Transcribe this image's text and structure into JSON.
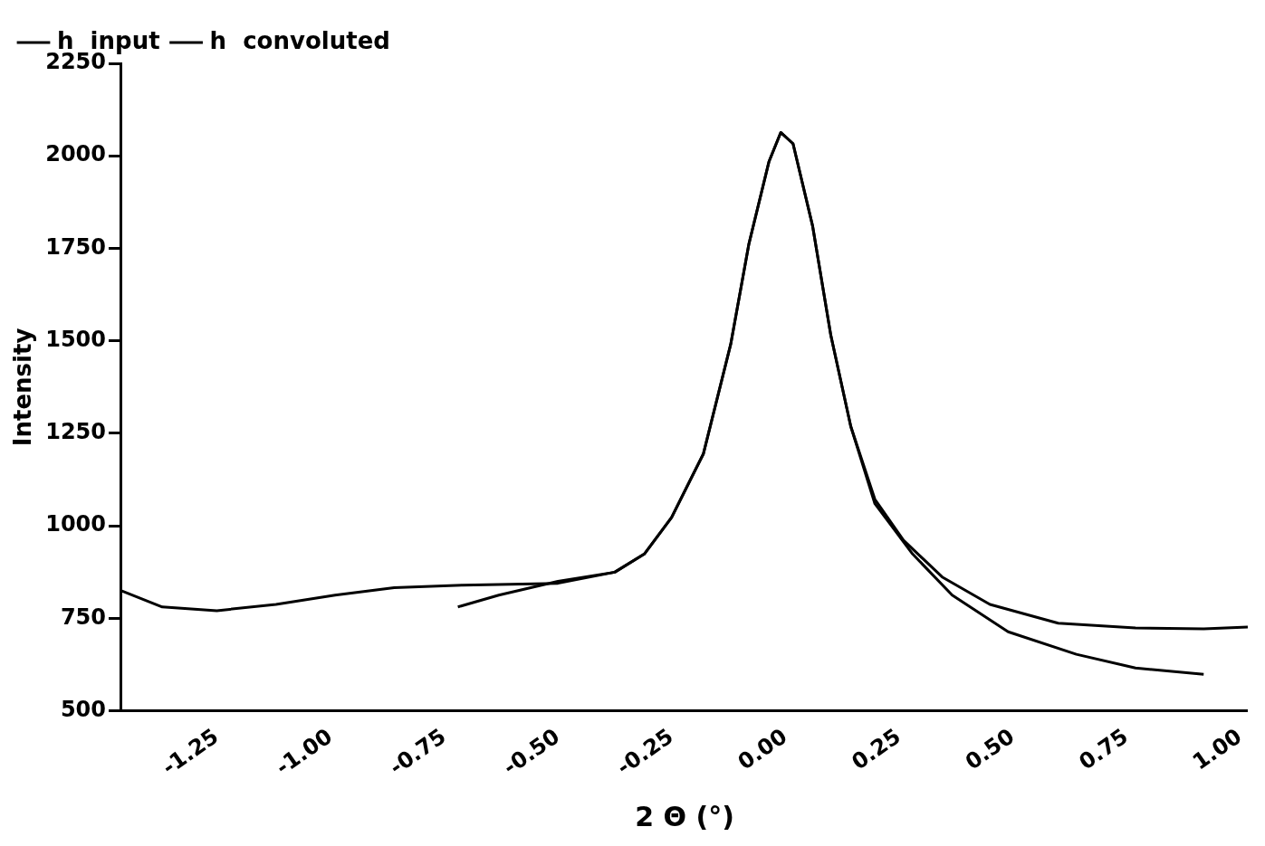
{
  "chart_data": {
    "type": "line",
    "xlabel": "2 Θ (°)",
    "ylabel": "Intensity",
    "xlim": [
      -1.46,
      1.017
    ],
    "ylim": [
      500,
      2250
    ],
    "xticks": [
      {
        "value": -1.25,
        "label": "-1.25"
      },
      {
        "value": -1,
        "label": "-1.00"
      },
      {
        "value": -0.75,
        "label": "-0.75"
      },
      {
        "value": -0.5,
        "label": "-0.50"
      },
      {
        "value": -0.25,
        "label": "-0.25"
      },
      {
        "value": 0,
        "label": "0.00"
      },
      {
        "value": 0.25,
        "label": "0.25"
      },
      {
        "value": 0.5,
        "label": "0.50"
      },
      {
        "value": 0.75,
        "label": "0.75"
      },
      {
        "value": 1,
        "label": "1.00"
      }
    ],
    "yticks": [
      500,
      750,
      1000,
      1250,
      1500,
      1750,
      2000,
      2250
    ],
    "grid": false,
    "legend": "top left",
    "marker": "none",
    "line_style": "solid",
    "series": [
      {
        "name": "h  input",
        "color": "#000000",
        "x": [
          -1.46,
          -1.37,
          -1.25,
          -1.12,
          -0.99,
          -0.86,
          -0.71,
          -0.5,
          -0.375,
          -0.31,
          -0.25,
          -0.18,
          -0.12,
          -0.08,
          -0.036,
          -0.01,
          0.017,
          0.06,
          0.1,
          0.144,
          0.197,
          0.26,
          0.345,
          0.45,
          0.6,
          0.77,
          0.92,
          1.017
        ],
        "values": [
          825,
          781,
          771,
          788,
          813,
          833,
          840,
          845,
          875,
          924,
          1023,
          1195,
          1491,
          1762,
          1984,
          2063,
          2033,
          1811,
          1516,
          1269,
          1072,
          961,
          862,
          788,
          737,
          724,
          722,
          727
        ]
      },
      {
        "name": "h  convoluted",
        "color": "#000000",
        "x": [
          -0.72,
          -0.63,
          -0.5,
          -0.375,
          -0.31,
          -0.25,
          -0.18,
          -0.12,
          -0.08,
          -0.036,
          -0.01,
          0.017,
          0.06,
          0.1,
          0.144,
          0.197,
          0.28,
          0.367,
          0.49,
          0.64,
          0.77,
          0.92
        ],
        "values": [
          781,
          813,
          850,
          875,
          924,
          1023,
          1195,
          1491,
          1762,
          1984,
          2063,
          2033,
          1811,
          1516,
          1269,
          1060,
          924,
          813,
          714,
          653,
          616,
          599
        ]
      }
    ]
  }
}
